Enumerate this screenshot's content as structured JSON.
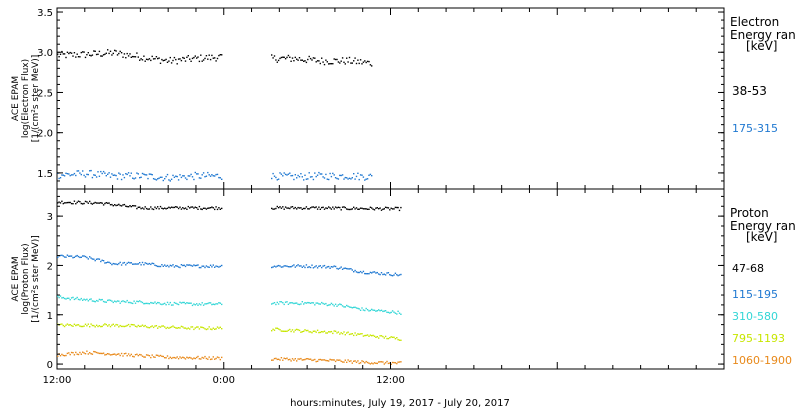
{
  "x_axis_title": "hours:minutes, July 19, 2017 - July 20, 2017",
  "chart_data": [
    {
      "type": "scatter",
      "panel": "electron",
      "ylabel": [
        "ACE EPAM",
        "log(Electron Flux)",
        "[1/(cm²s ster MeV)]"
      ],
      "ylim": [
        1.3,
        3.55
      ],
      "yticks": [
        1.5,
        2.0,
        2.5,
        3.0,
        3.5
      ],
      "ytick_labels": [
        "1.5",
        "2.0",
        "2.5",
        "3.0",
        "3.5"
      ],
      "xlim": [
        0,
        48
      ],
      "xticks": [
        0,
        12,
        24
      ],
      "xtick_labels": [
        "12:00",
        "0:00",
        "12:00"
      ],
      "legend_title": [
        "Electron",
        "Energy ran",
        "[keV]"
      ],
      "gaps": [
        [
          11.8,
          15.3
        ]
      ],
      "series": [
        {
          "name": "38-53",
          "color": "#000000",
          "start": 0,
          "end": 22.7,
          "x": [
            0,
            2,
            4,
            6,
            8,
            10,
            11.8,
            15.3,
            17,
            19,
            21,
            22.7
          ],
          "y": [
            2.97,
            2.98,
            3.0,
            2.95,
            2.9,
            2.93,
            2.95,
            2.93,
            2.93,
            2.9,
            2.9,
            2.87
          ]
        },
        {
          "name": "175-315",
          "color": "#1f78d1",
          "start": 0,
          "end": 22.7,
          "x": [
            0,
            2,
            4,
            6,
            8,
            10,
            11.8,
            15.3,
            17,
            19,
            21,
            22.7
          ],
          "y": [
            1.48,
            1.5,
            1.47,
            1.47,
            1.45,
            1.47,
            1.47,
            1.47,
            1.46,
            1.47,
            1.47,
            1.46
          ]
        }
      ]
    },
    {
      "type": "scatter",
      "panel": "proton",
      "ylabel": [
        "ACE EPAM",
        "log(Proton Flux)",
        "[1/(cm²s ster MeV)]"
      ],
      "ylim": [
        -0.1,
        3.55
      ],
      "yticks": [
        0,
        1,
        2,
        3
      ],
      "ytick_labels": [
        "0",
        "1",
        "2",
        "3"
      ],
      "xlim": [
        0,
        48
      ],
      "xticks": [
        0,
        12,
        24
      ],
      "xtick_labels": [
        "12:00",
        "0:00",
        "12:00"
      ],
      "legend_title": [
        "Proton",
        "Energy ran",
        "[keV]"
      ],
      "gaps": [
        [
          11.8,
          15.3
        ]
      ],
      "series": [
        {
          "name": "47-68",
          "color": "#000000",
          "start": 0,
          "end": 24.8,
          "x": [
            0,
            3,
            6,
            9,
            11.8,
            15.3,
            18,
            21,
            24.8
          ],
          "y": [
            3.3,
            3.28,
            3.18,
            3.18,
            3.18,
            3.18,
            3.18,
            3.17,
            3.16
          ]
        },
        {
          "name": "115-195",
          "color": "#1f78d1",
          "start": 0,
          "end": 24.8,
          "x": [
            0,
            2,
            4,
            6,
            8,
            10,
            11.8,
            15.3,
            18,
            20,
            22,
            24.8
          ],
          "y": [
            2.2,
            2.18,
            2.05,
            2.05,
            2.0,
            2.0,
            2.0,
            2.0,
            2.0,
            1.98,
            1.88,
            1.82
          ]
        },
        {
          "name": "310-580",
          "color": "#33d6d6",
          "start": 0,
          "end": 24.8,
          "x": [
            0,
            2,
            4,
            6,
            8,
            10,
            11.8,
            15.3,
            18,
            20,
            22,
            24.8
          ],
          "y": [
            1.37,
            1.32,
            1.28,
            1.27,
            1.24,
            1.23,
            1.23,
            1.25,
            1.25,
            1.22,
            1.12,
            1.05
          ]
        },
        {
          "name": "795-1193",
          "color": "#c7e600",
          "start": 0,
          "end": 24.8,
          "x": [
            0,
            2,
            4,
            6,
            8,
            10,
            11.8,
            15.3,
            18,
            20,
            22,
            24.8
          ],
          "y": [
            0.8,
            0.8,
            0.8,
            0.78,
            0.76,
            0.74,
            0.74,
            0.72,
            0.68,
            0.66,
            0.6,
            0.52
          ]
        },
        {
          "name": "1060-1900",
          "color": "#e8891a",
          "start": 0,
          "end": 24.8,
          "x": [
            0,
            2,
            4,
            6,
            8,
            10,
            11.8,
            15.3,
            18,
            20,
            22,
            24.8
          ],
          "y": [
            0.2,
            0.25,
            0.22,
            0.18,
            0.15,
            0.14,
            0.13,
            0.12,
            0.1,
            0.08,
            0.05,
            0.03
          ]
        }
      ]
    }
  ]
}
